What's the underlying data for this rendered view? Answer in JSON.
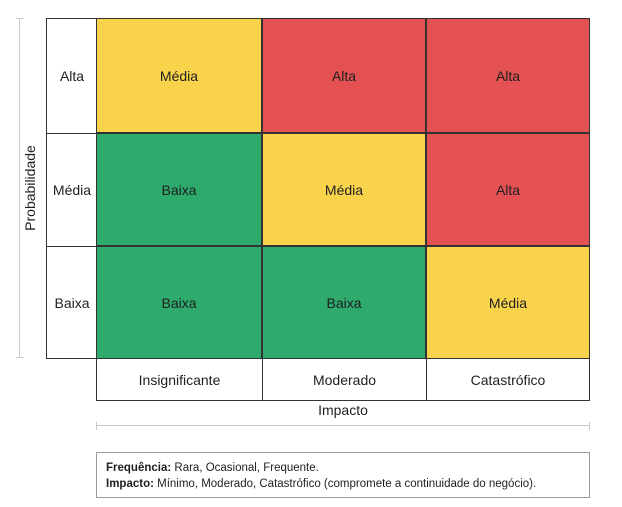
{
  "y_axis_title": "Probabilidade",
  "x_axis_title": "Impacto",
  "rows": [
    "Alta",
    "Média",
    "Baixa"
  ],
  "columns": [
    "Insignificante",
    "Moderado",
    "Catastrófico"
  ],
  "colors": {
    "Baixa": "#2eaa6c",
    "Média": "#fad34d",
    "Alta": "#e45153"
  },
  "matrix": [
    [
      "Média",
      "Alta",
      "Alta"
    ],
    [
      "Baixa",
      "Média",
      "Alta"
    ],
    [
      "Baixa",
      "Baixa",
      "Média"
    ]
  ],
  "legend": {
    "freq_label": "Frequência:",
    "freq_text": " Rara, Ocasional, Frequente.",
    "impact_label": "Impacto:",
    "impact_text": " Mínimo, Moderado, Catastrófico (compromete a continuidade do negócio)."
  }
}
